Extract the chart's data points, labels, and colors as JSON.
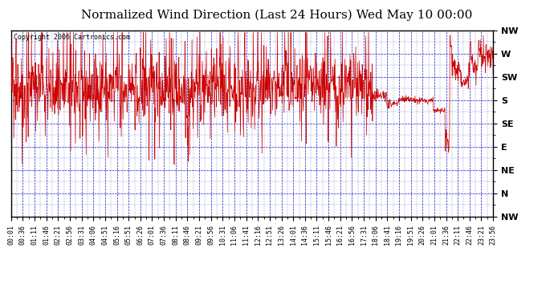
{
  "title": "Normalized Wind Direction (Last 24 Hours) Wed May 10 00:00",
  "copyright": "Copyright 2006 Cartronics.com",
  "ytick_labels": [
    "NW",
    "W",
    "SW",
    "S",
    "SE",
    "E",
    "NE",
    "N",
    "NW"
  ],
  "ytick_values": [
    8,
    7,
    6,
    5,
    4,
    3,
    2,
    1,
    0
  ],
  "xtick_labels": [
    "00:01",
    "00:36",
    "01:11",
    "01:46",
    "02:21",
    "02:56",
    "03:31",
    "04:06",
    "04:51",
    "05:16",
    "05:51",
    "06:26",
    "07:01",
    "07:36",
    "08:11",
    "08:46",
    "09:21",
    "09:56",
    "10:31",
    "11:06",
    "11:41",
    "12:16",
    "12:51",
    "13:26",
    "14:01",
    "14:36",
    "15:11",
    "15:46",
    "16:21",
    "16:56",
    "17:31",
    "18:06",
    "18:41",
    "19:16",
    "19:51",
    "20:26",
    "21:01",
    "21:36",
    "22:11",
    "22:46",
    "23:21",
    "23:56"
  ],
  "line_color": "#cc0000",
  "bg_color": "#ffffff",
  "grid_color": "#0000bb",
  "title_fontsize": 11,
  "copyright_fontsize": 6,
  "ylabel_fontsize": 8,
  "xlabel_fontsize": 6
}
